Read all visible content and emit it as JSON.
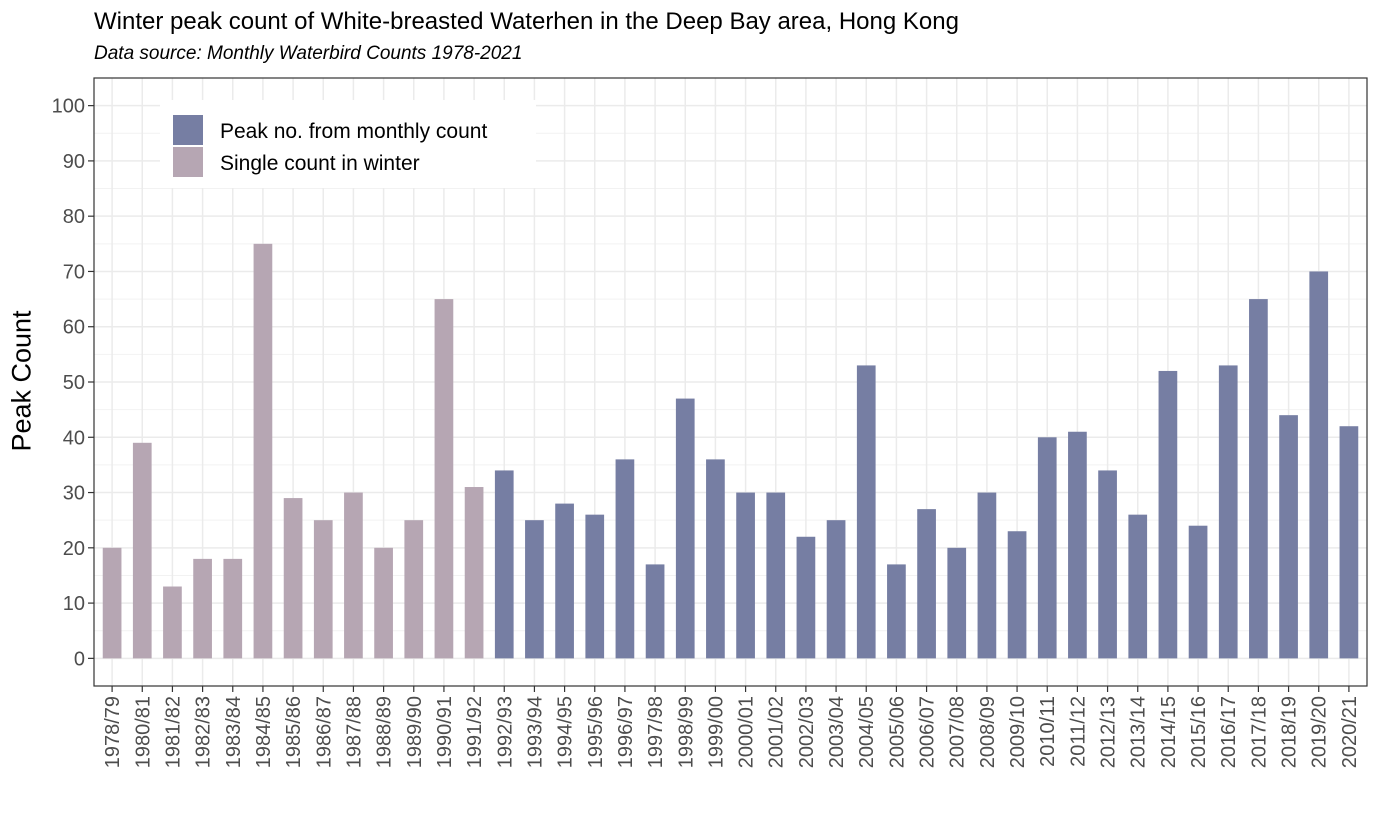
{
  "chart_data": {
    "type": "bar",
    "title": "Winter peak count of White-breasted Waterhen in the Deep Bay area, Hong Kong",
    "subtitle": "Data source: Monthly Waterbird Counts 1978-2021",
    "xlabel": "",
    "ylabel": "Peak Count",
    "ylim": [
      -5,
      105
    ],
    "yticks": [
      0,
      10,
      20,
      30,
      40,
      50,
      60,
      70,
      80,
      90,
      100
    ],
    "grid": true,
    "legend_position": "top-left",
    "categories": [
      "1978/79",
      "1980/81",
      "1981/82",
      "1982/83",
      "1983/84",
      "1984/85",
      "1985/86",
      "1986/87",
      "1987/88",
      "1988/89",
      "1989/90",
      "1990/91",
      "1991/92",
      "1992/93",
      "1993/94",
      "1994/95",
      "1995/96",
      "1996/97",
      "1997/98",
      "1998/99",
      "1999/00",
      "2000/01",
      "2001/02",
      "2002/03",
      "2003/04",
      "2004/05",
      "2005/06",
      "2006/07",
      "2007/08",
      "2008/09",
      "2009/10",
      "2010/11",
      "2011/12",
      "2012/13",
      "2013/14",
      "2014/15",
      "2015/16",
      "2016/17",
      "2017/18",
      "2018/19",
      "2019/20",
      "2020/21"
    ],
    "values": [
      20,
      39,
      13,
      18,
      18,
      75,
      29,
      25,
      30,
      20,
      25,
      65,
      31,
      34,
      25,
      28,
      26,
      36,
      17,
      47,
      36,
      30,
      30,
      22,
      25,
      53,
      17,
      27,
      20,
      30,
      23,
      40,
      41,
      34,
      26,
      52,
      24,
      53,
      65,
      44,
      70,
      42
    ],
    "series_type": [
      "single",
      "single",
      "single",
      "single",
      "single",
      "single",
      "single",
      "single",
      "single",
      "single",
      "single",
      "single",
      "single",
      "monthly",
      "monthly",
      "monthly",
      "monthly",
      "monthly",
      "monthly",
      "monthly",
      "monthly",
      "monthly",
      "monthly",
      "monthly",
      "monthly",
      "monthly",
      "monthly",
      "monthly",
      "monthly",
      "monthly",
      "monthly",
      "monthly",
      "monthly",
      "monthly",
      "monthly",
      "monthly",
      "monthly",
      "monthly",
      "monthly",
      "monthly",
      "monthly",
      "monthly"
    ],
    "series": [
      {
        "key": "monthly",
        "name": "Peak no. from monthly count",
        "color": "#767ea3"
      },
      {
        "key": "single",
        "name": "Single count in winter",
        "color": "#b6a6b3"
      }
    ]
  }
}
